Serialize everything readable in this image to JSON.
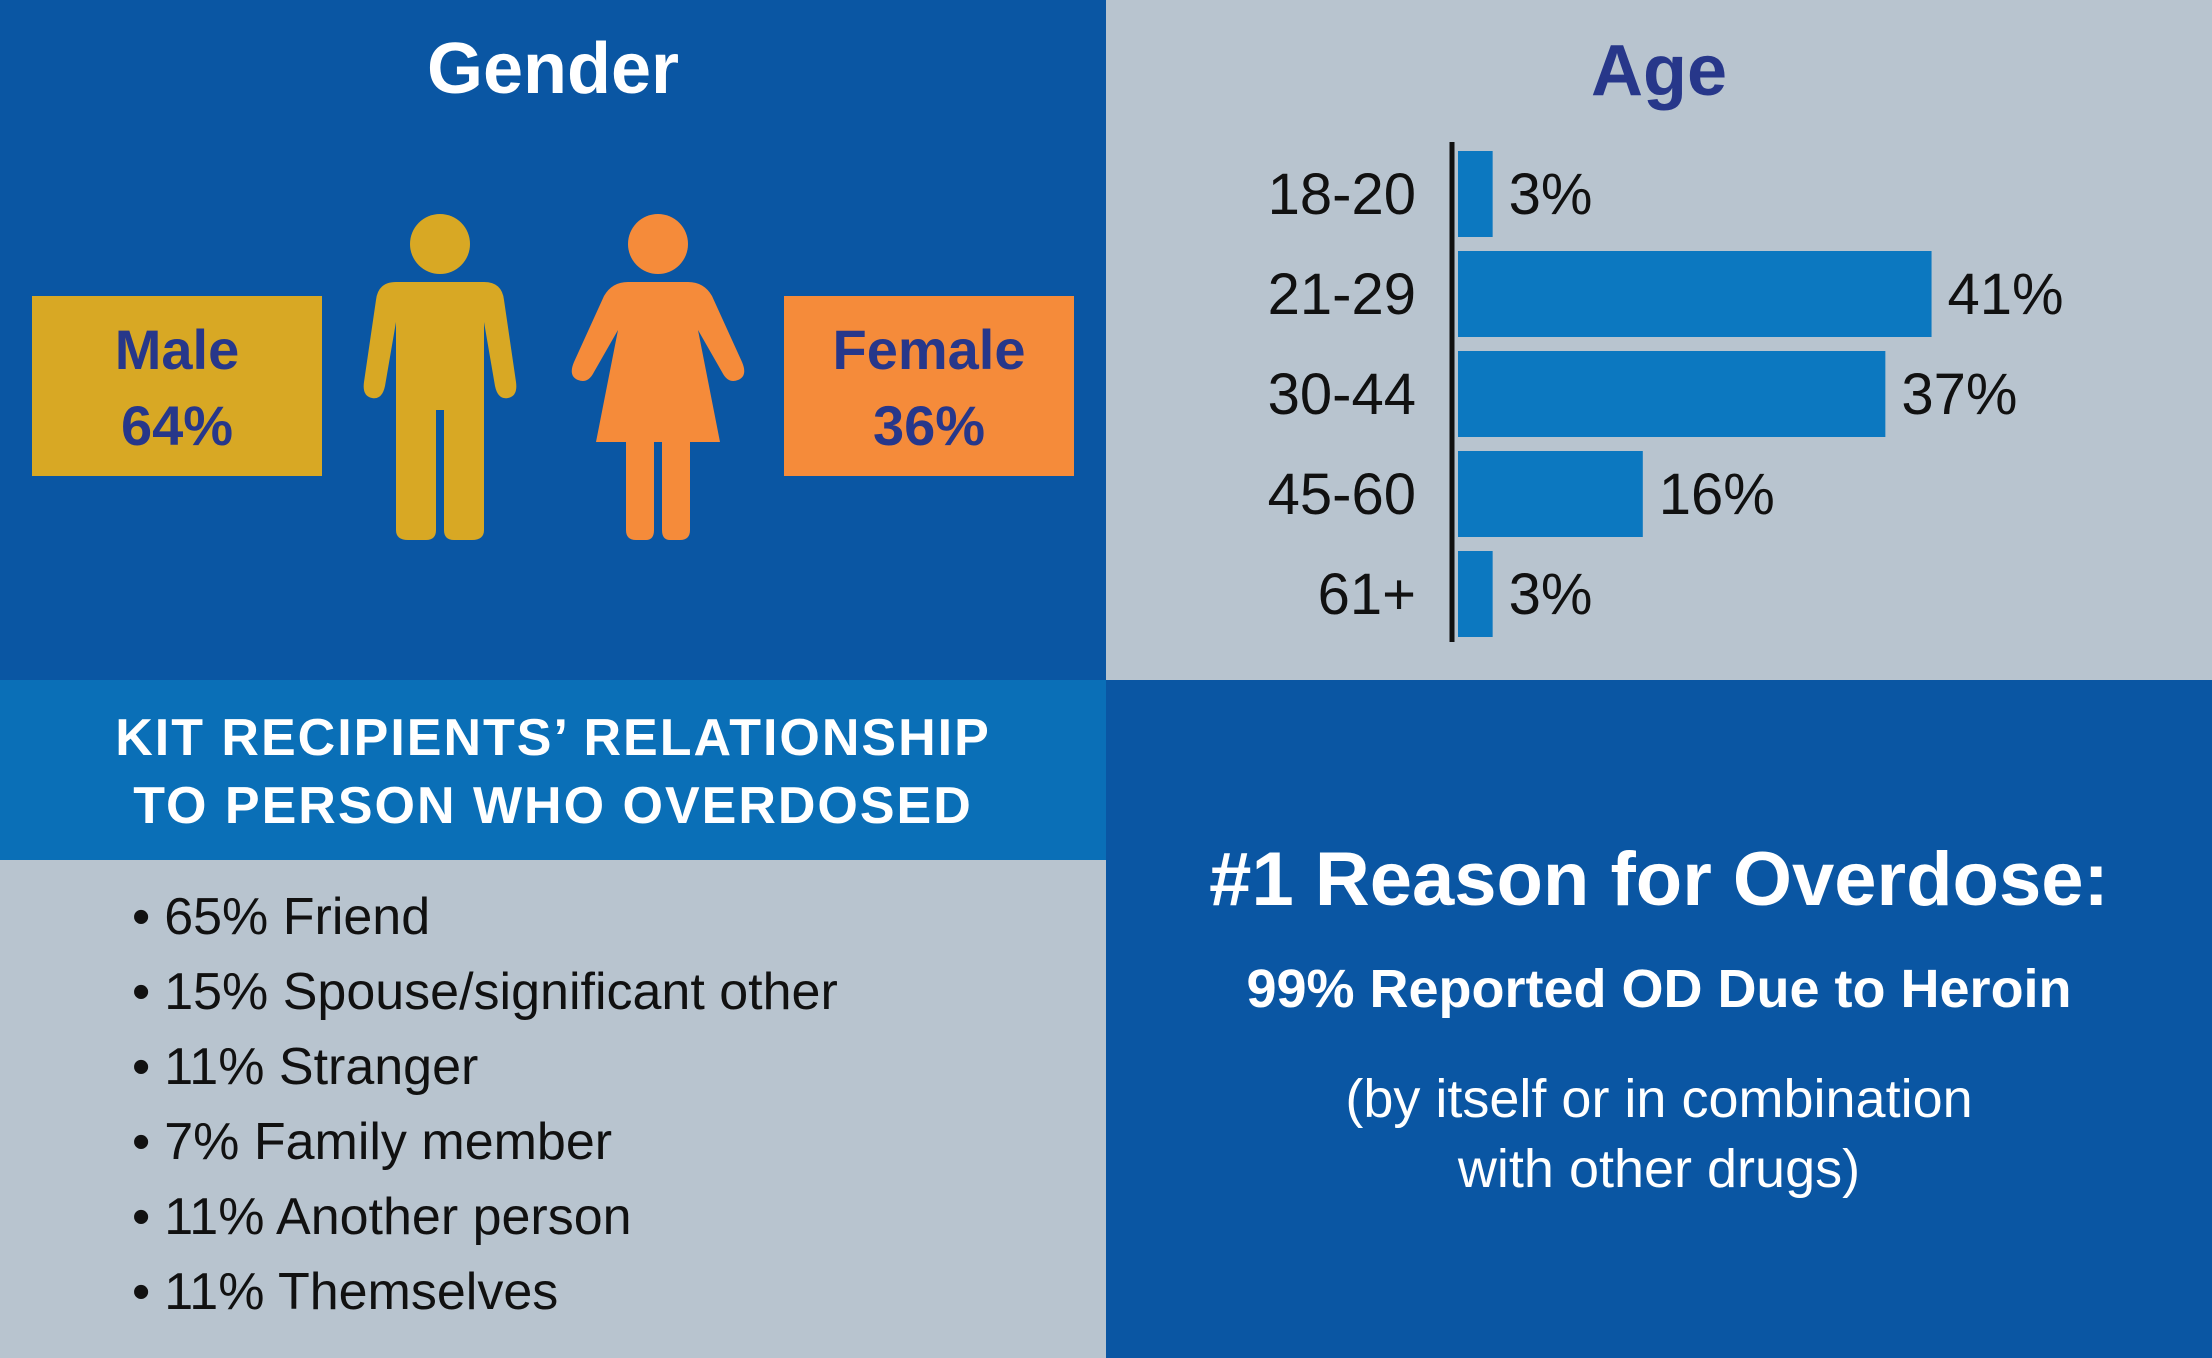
{
  "colors": {
    "dark_blue": "#0a56a3",
    "mid_blue": "#0a6fb7",
    "gray": "#b8c4cf",
    "bar_blue": "#0c78c0",
    "male_gold": "#d8a824",
    "female_orange": "#f58b3a",
    "label_navy": "#27378a",
    "text_dark": "#111111"
  },
  "gender": {
    "title": "Gender",
    "male": {
      "label": "Male",
      "value": "64%"
    },
    "female": {
      "label": "Female",
      "value": "36%"
    },
    "icons": [
      "male-person-icon",
      "female-person-icon"
    ]
  },
  "chart_data": [
    {
      "type": "bar",
      "orientation": "horizontal",
      "title": "Age",
      "categories": [
        "18-20",
        "21-29",
        "30-44",
        "45-60",
        "61+"
      ],
      "values": [
        3,
        41,
        37,
        16,
        3
      ],
      "value_labels": [
        "3%",
        "41%",
        "37%",
        "16%",
        "3%"
      ],
      "unit": "%",
      "xlim": [
        0,
        45
      ],
      "grid": false
    }
  ],
  "relationship": {
    "title_line1": "KIT RECIPIENTS’ RELATIONSHIP",
    "title_line2": "TO PERSON WHO OVERDOSED",
    "bullet": "•",
    "items": [
      "65% Friend",
      "15% Spouse/significant other",
      "11% Stranger",
      "7% Family member",
      "11% Another person",
      "11% Themselves"
    ]
  },
  "reason": {
    "title": "#1 Reason for Overdose:",
    "subtitle": "99% Reported OD Due to Heroin",
    "note_line1": "(by itself or in combination",
    "note_line2": "with other drugs)"
  }
}
